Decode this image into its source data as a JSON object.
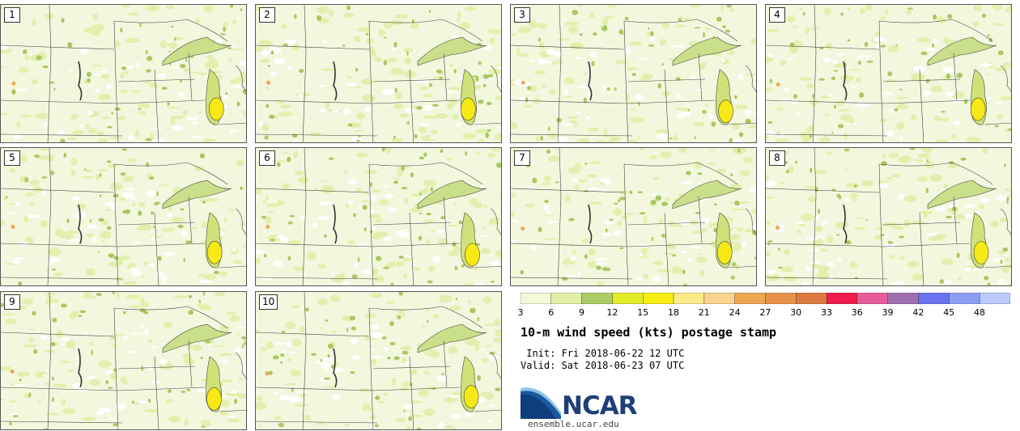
{
  "panels": [
    {
      "label": "1",
      "seed": 11
    },
    {
      "label": "2",
      "seed": 23
    },
    {
      "label": "3",
      "seed": 37
    },
    {
      "label": "4",
      "seed": 41
    },
    {
      "label": "5",
      "seed": 53
    },
    {
      "label": "6",
      "seed": 67
    },
    {
      "label": "7",
      "seed": 71
    },
    {
      "label": "8",
      "seed": 83
    },
    {
      "label": "9",
      "seed": 97
    },
    {
      "label": "10",
      "seed": 101
    }
  ],
  "colorbar": {
    "ticks": [
      "3",
      "6",
      "9",
      "12",
      "15",
      "18",
      "21",
      "24",
      "27",
      "30",
      "33",
      "36",
      "39",
      "42",
      "45",
      "48"
    ],
    "colors": [
      "#f5f8d8",
      "#e1f0a4",
      "#aacc66",
      "#e2ec28",
      "#f9ee14",
      "#fdeb8a",
      "#f8d48e",
      "#eea852",
      "#e8904a",
      "#dc7a42",
      "#ee1b4b",
      "#e85b9b",
      "#9e6fae",
      "#6b72f0",
      "#8b9ef4",
      "#bccbfc"
    ]
  },
  "title": "10-m wind speed (kts) postage stamp",
  "init_line": " Init: Fri 2018-06-22 12 UTC",
  "valid_line": "Valid: Sat 2018-06-23 07 UTC",
  "logo": {
    "name": "NCAR",
    "url": "ensemble.ucar.edu"
  }
}
